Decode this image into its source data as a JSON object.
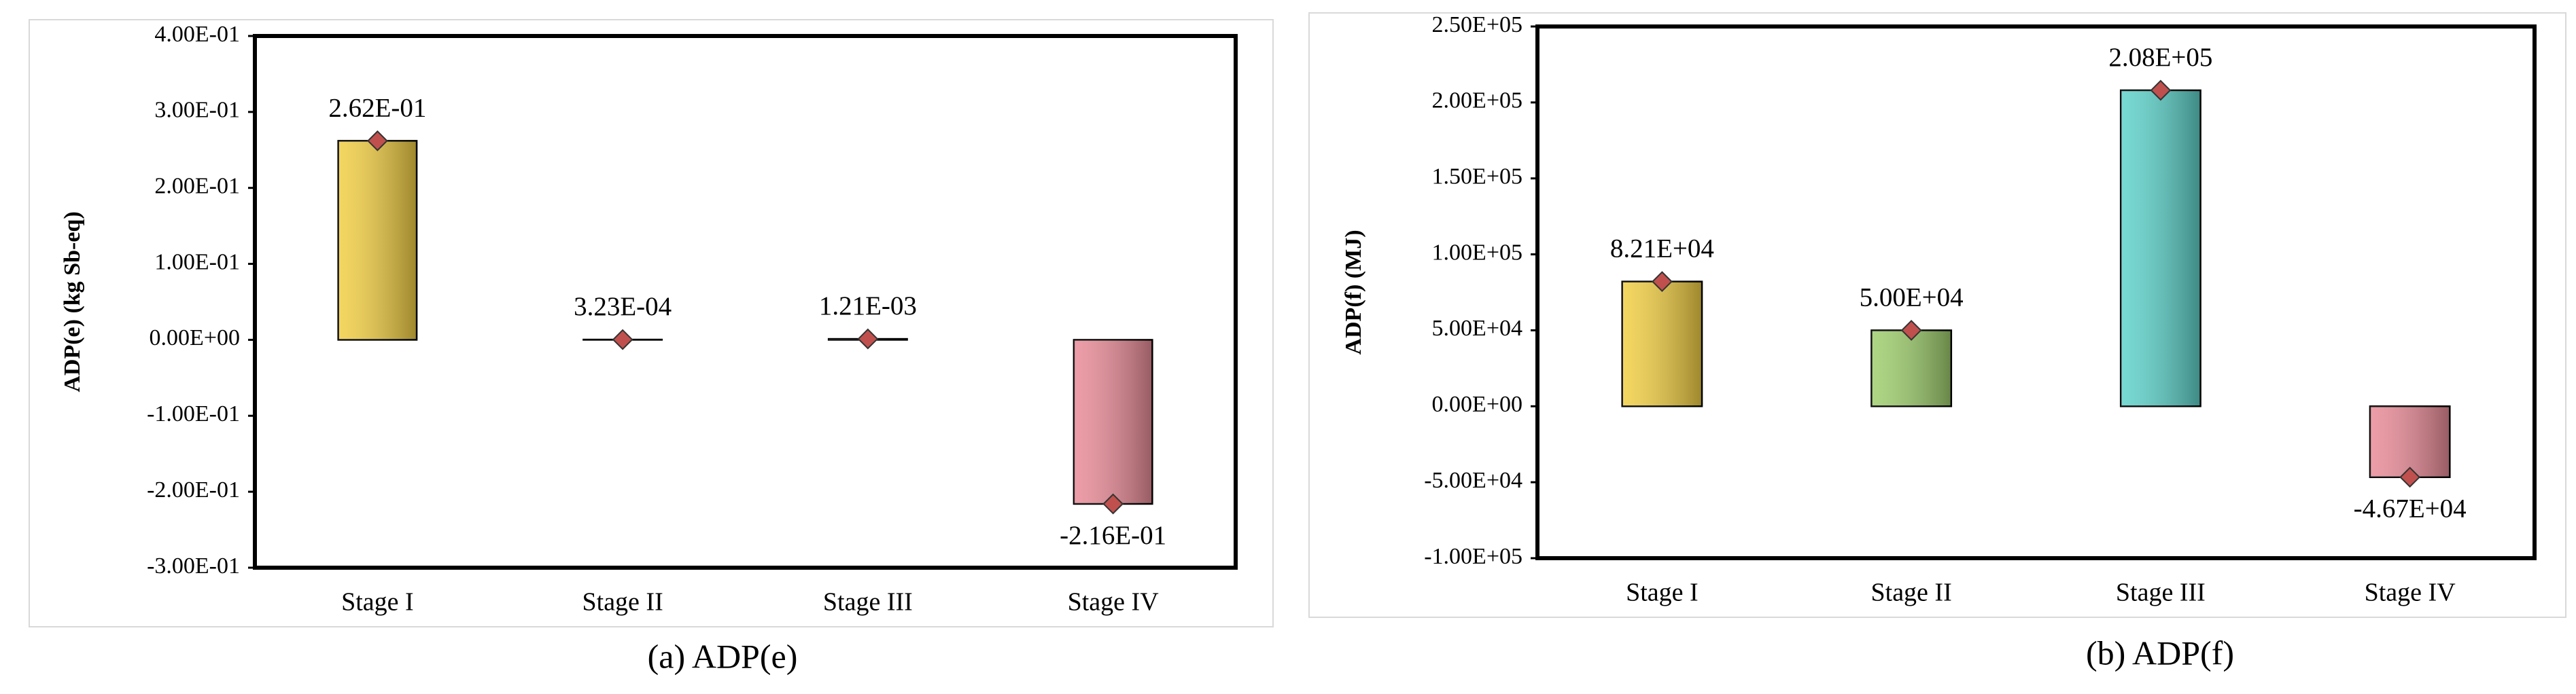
{
  "chart_data": [
    {
      "type": "bar",
      "caption": "(a) ADP(e)",
      "y_label": "ADP(e) (kg Sb-eq)",
      "categories": [
        "Stage I",
        "Stage II",
        "Stage III",
        "Stage IV"
      ],
      "values": [
        0.262,
        0.000323,
        0.00121,
        -0.216
      ],
      "value_labels": [
        "2.62E-01",
        "3.23E-04",
        "1.21E-03",
        "-2.16E-01"
      ],
      "colors": [
        "#f2cf45",
        "#9fcf6e",
        "#5fd3cb",
        "#ea8c98"
      ],
      "marker_color": "#c0504d",
      "ylim": [
        -0.3,
        0.4
      ],
      "yticks": [
        {
          "value": -0.3,
          "label": "-3.00E-01"
        },
        {
          "value": -0.2,
          "label": "-2.00E-01"
        },
        {
          "value": -0.1,
          "label": "-1.00E-01"
        },
        {
          "value": 0,
          "label": "0.00E+00"
        },
        {
          "value": 0.1,
          "label": "1.00E-01"
        },
        {
          "value": 0.2,
          "label": "2.00E-01"
        },
        {
          "value": 0.3,
          "label": "3.00E-01"
        },
        {
          "value": 0.4,
          "label": "4.00E-01"
        }
      ]
    },
    {
      "type": "bar",
      "caption": "(b) ADP(f)",
      "y_label": "ADP(f) (MJ)",
      "categories": [
        "Stage I",
        "Stage II",
        "Stage III",
        "Stage IV"
      ],
      "values": [
        82100,
        50000,
        208000,
        -46700
      ],
      "value_labels": [
        "8.21E+04",
        "5.00E+04",
        "2.08E+05",
        "-4.67E+04"
      ],
      "colors": [
        "#f2cf45",
        "#9fcf6e",
        "#5fd3cb",
        "#ea8c98"
      ],
      "marker_color": "#c0504d",
      "ylim": [
        -100000,
        250000
      ],
      "yticks": [
        {
          "value": -100000,
          "label": "-1.00E+05"
        },
        {
          "value": -50000,
          "label": "-5.00E+04"
        },
        {
          "value": 0,
          "label": "0.00E+00"
        },
        {
          "value": 50000,
          "label": "5.00E+04"
        },
        {
          "value": 100000,
          "label": "1.00E+05"
        },
        {
          "value": 150000,
          "label": "1.50E+05"
        },
        {
          "value": 200000,
          "label": "2.00E+05"
        },
        {
          "value": 250000,
          "label": "2.50E+05"
        }
      ]
    }
  ]
}
